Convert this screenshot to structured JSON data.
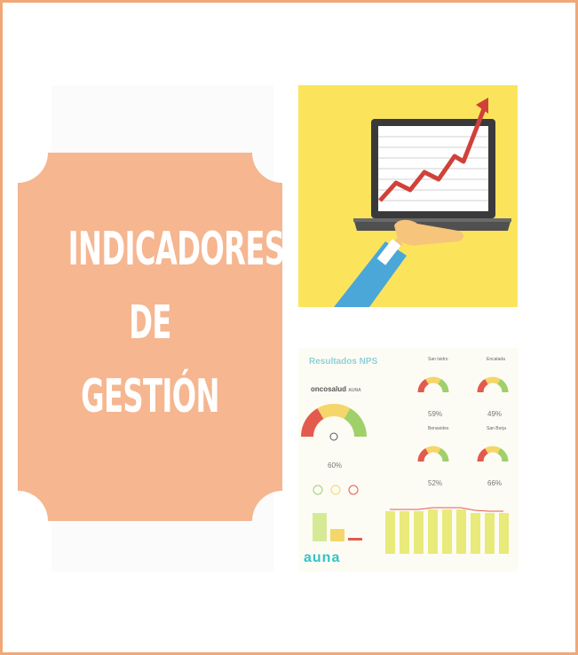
{
  "title_lines": [
    "INDICADORES",
    "DE",
    "GESTIÓN"
  ],
  "colors": {
    "border": "#f0a878",
    "card": "#f5b690",
    "yellow_bg": "#fbe45b"
  },
  "dashboard": {
    "title": "Resultados NPS",
    "brand": "oncosalud",
    "brand_sub": "AUNA",
    "main_gauge_pct": "60%",
    "gauges": [
      {
        "name": "San Isidro",
        "pct": "59%"
      },
      {
        "name": "Encalada",
        "pct": "49%"
      },
      {
        "name": "Benavides",
        "pct": "52%"
      },
      {
        "name": "San Borja",
        "pct": "66%"
      }
    ],
    "footer_logo": "auna"
  },
  "icons": [
    "laptop-icon",
    "trend-arrow-icon",
    "hand-icon",
    "gauge-icon",
    "smiley-icon"
  ]
}
